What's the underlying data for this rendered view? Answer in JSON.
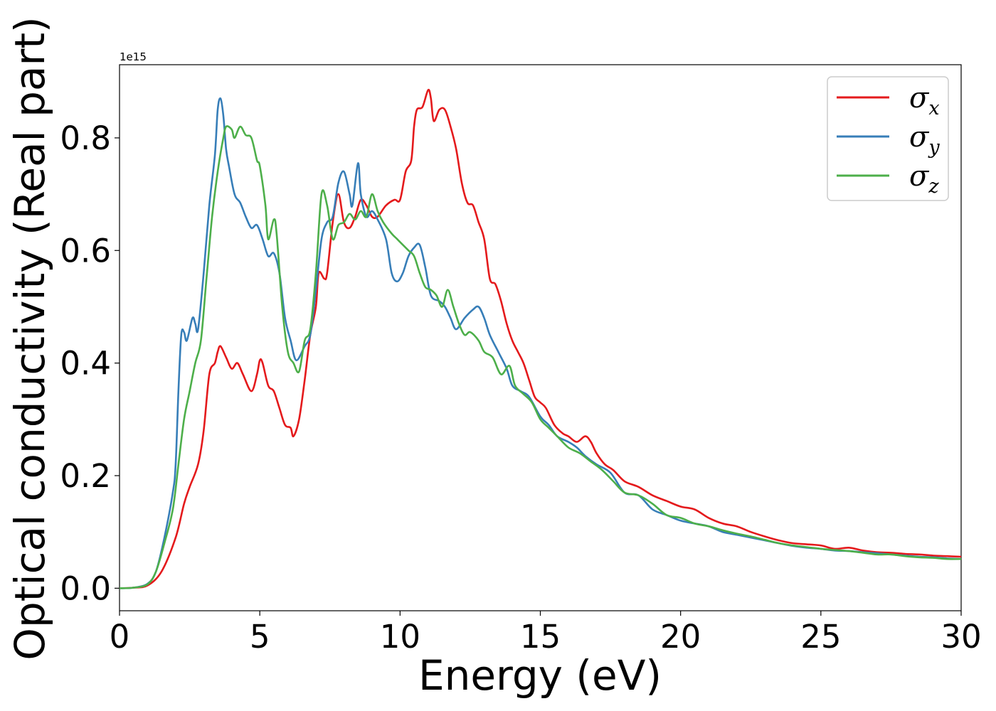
{
  "chart_data": {
    "type": "line",
    "xlabel": "Energy (eV)",
    "ylabel": "Optical conductivity (Real part)",
    "y_offset_text": "1e15",
    "xlim": [
      0,
      30
    ],
    "ylim": [
      -0.04,
      0.93
    ],
    "x_ticks": [
      0,
      5,
      10,
      15,
      20,
      25,
      30
    ],
    "y_ticks": [
      0.0,
      0.2,
      0.4,
      0.6,
      0.8
    ],
    "x_tick_labels": [
      "0",
      "5",
      "10",
      "15",
      "20",
      "25",
      "30"
    ],
    "y_tick_labels": [
      "0.0",
      "0.2",
      "0.4",
      "0.6",
      "0.8"
    ],
    "grid": false,
    "legend_position": "top-right",
    "series": [
      {
        "name": "σx",
        "symbol": "σ",
        "subscript": "x",
        "color": "#e41a1c",
        "points": [
          [
            0,
            0
          ],
          [
            0.5,
            0.001
          ],
          [
            1.0,
            0.005
          ],
          [
            1.5,
            0.03
          ],
          [
            2.0,
            0.09
          ],
          [
            2.3,
            0.15
          ],
          [
            2.5,
            0.18
          ],
          [
            2.8,
            0.22
          ],
          [
            3.0,
            0.28
          ],
          [
            3.2,
            0.38
          ],
          [
            3.4,
            0.4
          ],
          [
            3.5,
            0.42
          ],
          [
            3.6,
            0.43
          ],
          [
            3.8,
            0.41
          ],
          [
            4.0,
            0.39
          ],
          [
            4.2,
            0.4
          ],
          [
            4.4,
            0.38
          ],
          [
            4.7,
            0.35
          ],
          [
            4.9,
            0.38
          ],
          [
            5.0,
            0.405
          ],
          [
            5.1,
            0.4
          ],
          [
            5.3,
            0.36
          ],
          [
            5.5,
            0.35
          ],
          [
            5.7,
            0.32
          ],
          [
            5.9,
            0.29
          ],
          [
            6.1,
            0.285
          ],
          [
            6.2,
            0.27
          ],
          [
            6.4,
            0.3
          ],
          [
            6.6,
            0.37
          ],
          [
            6.8,
            0.45
          ],
          [
            7.0,
            0.5
          ],
          [
            7.1,
            0.56
          ],
          [
            7.3,
            0.55
          ],
          [
            7.4,
            0.56
          ],
          [
            7.6,
            0.65
          ],
          [
            7.8,
            0.7
          ],
          [
            8.0,
            0.65
          ],
          [
            8.2,
            0.64
          ],
          [
            8.4,
            0.66
          ],
          [
            8.6,
            0.69
          ],
          [
            8.8,
            0.68
          ],
          [
            9.0,
            0.66
          ],
          [
            9.2,
            0.66
          ],
          [
            9.5,
            0.68
          ],
          [
            9.8,
            0.69
          ],
          [
            10.0,
            0.69
          ],
          [
            10.2,
            0.74
          ],
          [
            10.4,
            0.76
          ],
          [
            10.5,
            0.82
          ],
          [
            10.6,
            0.85
          ],
          [
            10.8,
            0.855
          ],
          [
            11.0,
            0.885
          ],
          [
            11.1,
            0.87
          ],
          [
            11.2,
            0.83
          ],
          [
            11.4,
            0.85
          ],
          [
            11.6,
            0.85
          ],
          [
            11.8,
            0.82
          ],
          [
            12.0,
            0.78
          ],
          [
            12.2,
            0.72
          ],
          [
            12.4,
            0.685
          ],
          [
            12.6,
            0.68
          ],
          [
            12.8,
            0.65
          ],
          [
            13.0,
            0.62
          ],
          [
            13.2,
            0.55
          ],
          [
            13.4,
            0.54
          ],
          [
            13.6,
            0.51
          ],
          [
            13.8,
            0.47
          ],
          [
            14.0,
            0.44
          ],
          [
            14.2,
            0.42
          ],
          [
            14.4,
            0.4
          ],
          [
            14.6,
            0.37
          ],
          [
            14.8,
            0.34
          ],
          [
            15.0,
            0.33
          ],
          [
            15.2,
            0.32
          ],
          [
            15.5,
            0.29
          ],
          [
            15.8,
            0.275
          ],
          [
            16.0,
            0.27
          ],
          [
            16.3,
            0.26
          ],
          [
            16.6,
            0.27
          ],
          [
            16.8,
            0.26
          ],
          [
            17.0,
            0.24
          ],
          [
            17.3,
            0.22
          ],
          [
            17.6,
            0.21
          ],
          [
            18.0,
            0.19
          ],
          [
            18.5,
            0.18
          ],
          [
            19.0,
            0.165
          ],
          [
            19.5,
            0.155
          ],
          [
            20.0,
            0.145
          ],
          [
            20.5,
            0.14
          ],
          [
            21.0,
            0.125
          ],
          [
            21.5,
            0.115
          ],
          [
            22.0,
            0.11
          ],
          [
            22.5,
            0.1
          ],
          [
            23.0,
            0.092
          ],
          [
            23.5,
            0.085
          ],
          [
            24.0,
            0.08
          ],
          [
            24.5,
            0.078
          ],
          [
            25.0,
            0.076
          ],
          [
            25.5,
            0.07
          ],
          [
            26.0,
            0.072
          ],
          [
            26.5,
            0.067
          ],
          [
            27.0,
            0.064
          ],
          [
            27.5,
            0.063
          ],
          [
            28.0,
            0.061
          ],
          [
            28.5,
            0.06
          ],
          [
            29.0,
            0.058
          ],
          [
            29.5,
            0.057
          ],
          [
            30.0,
            0.056
          ]
        ]
      },
      {
        "name": "σy",
        "symbol": "σ",
        "subscript": "y",
        "color": "#377eb8",
        "points": [
          [
            0,
            0
          ],
          [
            0.5,
            0.001
          ],
          [
            1.0,
            0.008
          ],
          [
            1.3,
            0.03
          ],
          [
            1.6,
            0.09
          ],
          [
            1.9,
            0.17
          ],
          [
            2.0,
            0.22
          ],
          [
            2.1,
            0.35
          ],
          [
            2.2,
            0.45
          ],
          [
            2.3,
            0.455
          ],
          [
            2.4,
            0.44
          ],
          [
            2.6,
            0.48
          ],
          [
            2.7,
            0.47
          ],
          [
            2.8,
            0.46
          ],
          [
            3.0,
            0.56
          ],
          [
            3.2,
            0.68
          ],
          [
            3.4,
            0.77
          ],
          [
            3.5,
            0.85
          ],
          [
            3.6,
            0.87
          ],
          [
            3.7,
            0.84
          ],
          [
            3.8,
            0.78
          ],
          [
            3.9,
            0.75
          ],
          [
            4.1,
            0.7
          ],
          [
            4.3,
            0.685
          ],
          [
            4.5,
            0.66
          ],
          [
            4.7,
            0.64
          ],
          [
            4.9,
            0.645
          ],
          [
            5.1,
            0.62
          ],
          [
            5.3,
            0.59
          ],
          [
            5.5,
            0.595
          ],
          [
            5.7,
            0.56
          ],
          [
            5.9,
            0.48
          ],
          [
            6.1,
            0.44
          ],
          [
            6.3,
            0.405
          ],
          [
            6.6,
            0.43
          ],
          [
            6.8,
            0.45
          ],
          [
            7.0,
            0.53
          ],
          [
            7.2,
            0.62
          ],
          [
            7.4,
            0.65
          ],
          [
            7.6,
            0.66
          ],
          [
            7.8,
            0.72
          ],
          [
            8.0,
            0.74
          ],
          [
            8.2,
            0.7
          ],
          [
            8.3,
            0.68
          ],
          [
            8.5,
            0.755
          ],
          [
            8.6,
            0.7
          ],
          [
            8.8,
            0.66
          ],
          [
            9.0,
            0.67
          ],
          [
            9.2,
            0.655
          ],
          [
            9.5,
            0.62
          ],
          [
            9.7,
            0.56
          ],
          [
            9.9,
            0.545
          ],
          [
            10.1,
            0.56
          ],
          [
            10.3,
            0.59
          ],
          [
            10.5,
            0.605
          ],
          [
            10.7,
            0.61
          ],
          [
            10.9,
            0.57
          ],
          [
            11.1,
            0.52
          ],
          [
            11.4,
            0.51
          ],
          [
            11.6,
            0.5
          ],
          [
            11.8,
            0.48
          ],
          [
            12.0,
            0.46
          ],
          [
            12.3,
            0.48
          ],
          [
            12.6,
            0.495
          ],
          [
            12.8,
            0.5
          ],
          [
            13.0,
            0.48
          ],
          [
            13.2,
            0.45
          ],
          [
            13.5,
            0.42
          ],
          [
            13.8,
            0.39
          ],
          [
            14.0,
            0.36
          ],
          [
            14.3,
            0.35
          ],
          [
            14.6,
            0.34
          ],
          [
            15.0,
            0.305
          ],
          [
            15.3,
            0.29
          ],
          [
            15.6,
            0.27
          ],
          [
            16.0,
            0.26
          ],
          [
            16.3,
            0.25
          ],
          [
            16.6,
            0.235
          ],
          [
            17.0,
            0.22
          ],
          [
            17.5,
            0.205
          ],
          [
            18.0,
            0.17
          ],
          [
            18.5,
            0.165
          ],
          [
            19.0,
            0.14
          ],
          [
            19.5,
            0.13
          ],
          [
            20.0,
            0.12
          ],
          [
            20.5,
            0.115
          ],
          [
            21.0,
            0.11
          ],
          [
            21.5,
            0.1
          ],
          [
            22.0,
            0.095
          ],
          [
            22.5,
            0.09
          ],
          [
            23.0,
            0.085
          ],
          [
            23.5,
            0.08
          ],
          [
            24.0,
            0.075
          ],
          [
            24.5,
            0.072
          ],
          [
            25.0,
            0.07
          ],
          [
            25.5,
            0.067
          ],
          [
            26.0,
            0.066
          ],
          [
            26.5,
            0.064
          ],
          [
            27.0,
            0.062
          ],
          [
            27.5,
            0.06
          ],
          [
            28.0,
            0.058
          ],
          [
            28.5,
            0.056
          ],
          [
            29.0,
            0.055
          ],
          [
            29.5,
            0.053
          ],
          [
            30.0,
            0.052
          ]
        ]
      },
      {
        "name": "σz",
        "symbol": "σ",
        "subscript": "z",
        "color": "#4daf4a",
        "points": [
          [
            0,
            0
          ],
          [
            0.5,
            0.001
          ],
          [
            1.0,
            0.007
          ],
          [
            1.3,
            0.03
          ],
          [
            1.6,
            0.08
          ],
          [
            1.9,
            0.14
          ],
          [
            2.1,
            0.22
          ],
          [
            2.3,
            0.3
          ],
          [
            2.5,
            0.35
          ],
          [
            2.7,
            0.4
          ],
          [
            2.9,
            0.44
          ],
          [
            3.1,
            0.55
          ],
          [
            3.3,
            0.66
          ],
          [
            3.5,
            0.74
          ],
          [
            3.7,
            0.8
          ],
          [
            3.8,
            0.82
          ],
          [
            4.0,
            0.815
          ],
          [
            4.1,
            0.8
          ],
          [
            4.3,
            0.82
          ],
          [
            4.5,
            0.805
          ],
          [
            4.7,
            0.8
          ],
          [
            4.9,
            0.76
          ],
          [
            5.0,
            0.75
          ],
          [
            5.2,
            0.68
          ],
          [
            5.3,
            0.62
          ],
          [
            5.5,
            0.655
          ],
          [
            5.6,
            0.63
          ],
          [
            5.8,
            0.5
          ],
          [
            6.0,
            0.42
          ],
          [
            6.2,
            0.4
          ],
          [
            6.4,
            0.385
          ],
          [
            6.6,
            0.44
          ],
          [
            6.8,
            0.46
          ],
          [
            7.0,
            0.56
          ],
          [
            7.2,
            0.7
          ],
          [
            7.4,
            0.68
          ],
          [
            7.6,
            0.62
          ],
          [
            7.8,
            0.645
          ],
          [
            8.0,
            0.65
          ],
          [
            8.2,
            0.665
          ],
          [
            8.4,
            0.655
          ],
          [
            8.6,
            0.67
          ],
          [
            8.8,
            0.66
          ],
          [
            9.0,
            0.7
          ],
          [
            9.2,
            0.67
          ],
          [
            9.4,
            0.65
          ],
          [
            9.7,
            0.63
          ],
          [
            9.9,
            0.62
          ],
          [
            10.1,
            0.61
          ],
          [
            10.3,
            0.6
          ],
          [
            10.5,
            0.59
          ],
          [
            10.7,
            0.56
          ],
          [
            10.9,
            0.535
          ],
          [
            11.1,
            0.53
          ],
          [
            11.3,
            0.52
          ],
          [
            11.5,
            0.5
          ],
          [
            11.7,
            0.53
          ],
          [
            11.9,
            0.5
          ],
          [
            12.1,
            0.47
          ],
          [
            12.3,
            0.45
          ],
          [
            12.5,
            0.455
          ],
          [
            12.8,
            0.44
          ],
          [
            13.0,
            0.42
          ],
          [
            13.3,
            0.41
          ],
          [
            13.6,
            0.38
          ],
          [
            13.9,
            0.395
          ],
          [
            14.1,
            0.36
          ],
          [
            14.4,
            0.345
          ],
          [
            14.7,
            0.33
          ],
          [
            15.0,
            0.3
          ],
          [
            15.3,
            0.285
          ],
          [
            15.6,
            0.27
          ],
          [
            16.0,
            0.25
          ],
          [
            16.4,
            0.24
          ],
          [
            16.8,
            0.225
          ],
          [
            17.2,
            0.21
          ],
          [
            17.6,
            0.19
          ],
          [
            18.0,
            0.17
          ],
          [
            18.5,
            0.165
          ],
          [
            19.0,
            0.15
          ],
          [
            19.5,
            0.13
          ],
          [
            20.0,
            0.125
          ],
          [
            20.5,
            0.115
          ],
          [
            21.0,
            0.11
          ],
          [
            21.5,
            0.103
          ],
          [
            22.0,
            0.097
          ],
          [
            22.5,
            0.092
          ],
          [
            23.0,
            0.086
          ],
          [
            23.5,
            0.08
          ],
          [
            24.0,
            0.076
          ],
          [
            24.5,
            0.073
          ],
          [
            25.0,
            0.07
          ],
          [
            25.5,
            0.068
          ],
          [
            26.0,
            0.066
          ],
          [
            26.5,
            0.063
          ],
          [
            27.0,
            0.06
          ],
          [
            27.5,
            0.06
          ],
          [
            28.0,
            0.057
          ],
          [
            28.5,
            0.055
          ],
          [
            29.0,
            0.054
          ],
          [
            29.5,
            0.052
          ],
          [
            30.0,
            0.052
          ]
        ]
      }
    ]
  }
}
